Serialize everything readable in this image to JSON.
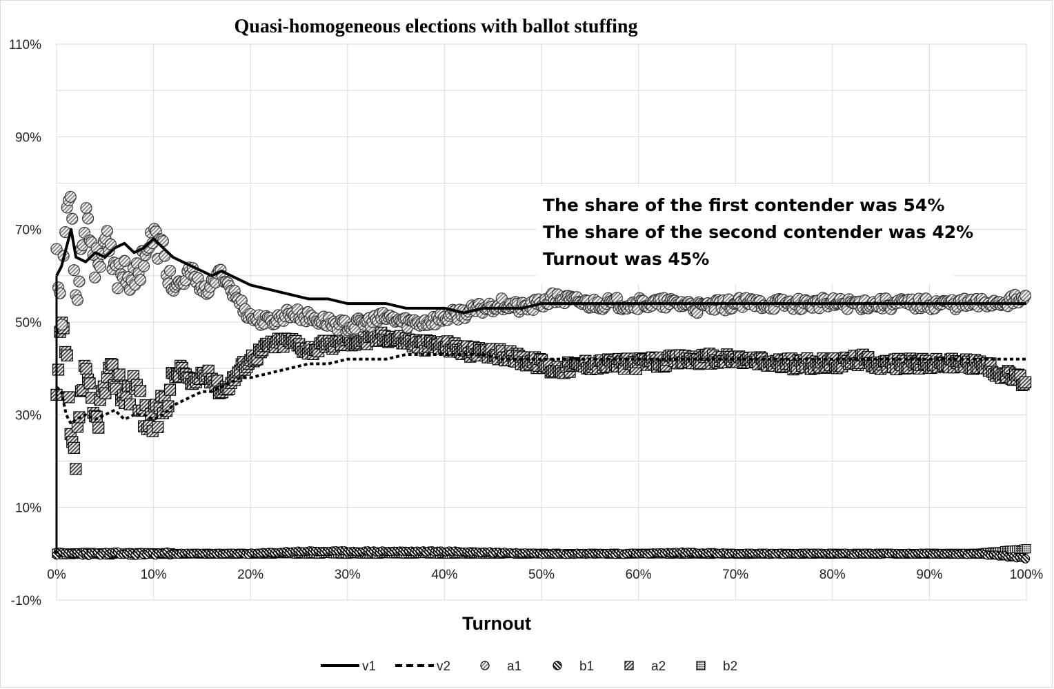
{
  "chart_data": {
    "type": "line",
    "title": "Quasi-homogeneous elections with ballot stuffing",
    "xlabel": "Turnout",
    "ylabel": "",
    "xlim": [
      0,
      100
    ],
    "ylim": [
      -10,
      110
    ],
    "x_ticks": [
      "0%",
      "10%",
      "20%",
      "30%",
      "40%",
      "50%",
      "60%",
      "70%",
      "80%",
      "90%",
      "100%"
    ],
    "y_ticks": [
      "110%",
      "90%",
      "70%",
      "50%",
      "30%",
      "10%",
      "-10%"
    ],
    "y_tick_values": [
      110,
      90,
      70,
      50,
      30,
      10,
      -10
    ],
    "grid": true,
    "legend_position": "bottom",
    "annotations": [
      "The share of the first contender was 54%",
      "The share of the second contender was 42%",
      "Turnout was 45%"
    ],
    "series": [
      {
        "name": "v1",
        "style": "solid-line",
        "x": [
          0,
          0.5,
          1,
          1.5,
          2,
          3,
          4,
          5,
          6,
          7,
          8,
          9,
          10,
          11,
          12,
          13,
          14,
          15,
          16,
          17,
          18,
          19,
          20,
          22,
          24,
          26,
          28,
          30,
          32,
          34,
          36,
          38,
          40,
          42,
          44,
          46,
          48,
          50,
          55,
          60,
          65,
          70,
          75,
          80,
          85,
          90,
          95,
          100
        ],
        "y": [
          60,
          62,
          66,
          70,
          64,
          63,
          65,
          64,
          66,
          67,
          65,
          66,
          68,
          66,
          64,
          63,
          62,
          61,
          60,
          61,
          60,
          59,
          58,
          57,
          56,
          55,
          55,
          54,
          54,
          54,
          53,
          53,
          53,
          52,
          53,
          53,
          53,
          54,
          54,
          54,
          54,
          54,
          54,
          54,
          54,
          54,
          54,
          54
        ]
      },
      {
        "name": "v2",
        "style": "dashed-line",
        "x": [
          0,
          0.5,
          1,
          1.5,
          2,
          3,
          4,
          5,
          6,
          7,
          8,
          9,
          10,
          11,
          12,
          13,
          14,
          15,
          16,
          17,
          18,
          19,
          20,
          22,
          24,
          26,
          28,
          30,
          32,
          34,
          36,
          38,
          40,
          42,
          44,
          46,
          48,
          50,
          55,
          60,
          65,
          70,
          75,
          80,
          85,
          90,
          95,
          100
        ],
        "y": [
          36,
          35,
          30,
          28,
          29,
          30,
          29,
          30,
          31,
          29,
          30,
          30,
          29,
          30,
          32,
          33,
          34,
          35,
          35,
          36,
          37,
          38,
          38,
          39,
          40,
          41,
          41,
          42,
          42,
          42,
          43,
          43,
          43,
          43,
          43,
          42,
          42,
          42,
          42,
          42,
          42,
          42,
          42,
          42,
          42,
          42,
          42,
          42
        ]
      },
      {
        "name": "a1",
        "style": "circle-markers",
        "x": [
          0,
          0.5,
          1,
          1.5,
          2,
          2.5,
          3,
          4,
          5,
          6,
          7,
          8,
          9,
          10,
          11,
          12,
          13,
          14,
          15,
          16,
          17,
          18,
          19,
          20,
          22,
          24,
          26,
          28,
          30,
          32,
          34,
          36,
          38,
          40,
          42,
          44,
          46,
          48,
          50,
          51,
          52,
          55,
          60,
          65,
          66,
          70,
          75,
          80,
          85,
          90,
          95,
          100
        ],
        "y": [
          67,
          50,
          75,
          77,
          55,
          64,
          75,
          62,
          68,
          60,
          62,
          58,
          65,
          68,
          65,
          57,
          58,
          62,
          56,
          58,
          61,
          57,
          54,
          51,
          50,
          52,
          51,
          50,
          49,
          50,
          51,
          50,
          50,
          51,
          52,
          53,
          54,
          53,
          54,
          55,
          55,
          54,
          54,
          54,
          53,
          54,
          54,
          54,
          54,
          54,
          54,
          55
        ]
      },
      {
        "name": "b1",
        "style": "circle-markers",
        "x": [
          0,
          1,
          2,
          5,
          10,
          15,
          20,
          25,
          30,
          35,
          40,
          45,
          50,
          55,
          60,
          65,
          70,
          75,
          80,
          85,
          90,
          95,
          100
        ],
        "y": [
          0,
          0,
          0,
          0,
          0,
          0,
          0,
          0.5,
          0.5,
          0.5,
          0.5,
          0.3,
          0,
          0,
          0,
          0.3,
          0,
          0,
          0,
          0,
          0,
          0,
          -1
        ]
      },
      {
        "name": "a2",
        "style": "square-markers",
        "x": [
          0,
          0.5,
          1,
          1.5,
          2,
          2.5,
          3,
          4,
          5,
          6,
          7,
          8,
          9,
          10,
          11,
          12,
          13,
          14,
          15,
          16,
          17,
          18,
          19,
          20,
          22,
          24,
          26,
          28,
          30,
          32,
          34,
          36,
          38,
          40,
          42,
          44,
          46,
          48,
          50,
          51,
          52,
          55,
          60,
          65,
          70,
          75,
          80,
          83,
          85,
          90,
          95,
          100
        ],
        "y": [
          33,
          49,
          43,
          22,
          20,
          35,
          38,
          28,
          36,
          39,
          34,
          37,
          30,
          28,
          32,
          38,
          40,
          36,
          39,
          38,
          35,
          37,
          40,
          42,
          45,
          46,
          44,
          45,
          46,
          46,
          47,
          46,
          45,
          45,
          44,
          43,
          43,
          42,
          41,
          40,
          40,
          41,
          41,
          42,
          42,
          41,
          41,
          42,
          41,
          41,
          41,
          37
        ]
      },
      {
        "name": "b2",
        "style": "square-markers",
        "x": [
          0,
          1,
          2,
          5,
          10,
          15,
          20,
          25,
          30,
          35,
          40,
          45,
          50,
          55,
          60,
          65,
          70,
          75,
          80,
          85,
          90,
          95,
          100
        ],
        "y": [
          0,
          0,
          0,
          0,
          0,
          0,
          0,
          0,
          0,
          0,
          0,
          0,
          0,
          0,
          0,
          0,
          0,
          0,
          0,
          0,
          0,
          0,
          1
        ]
      }
    ]
  }
}
